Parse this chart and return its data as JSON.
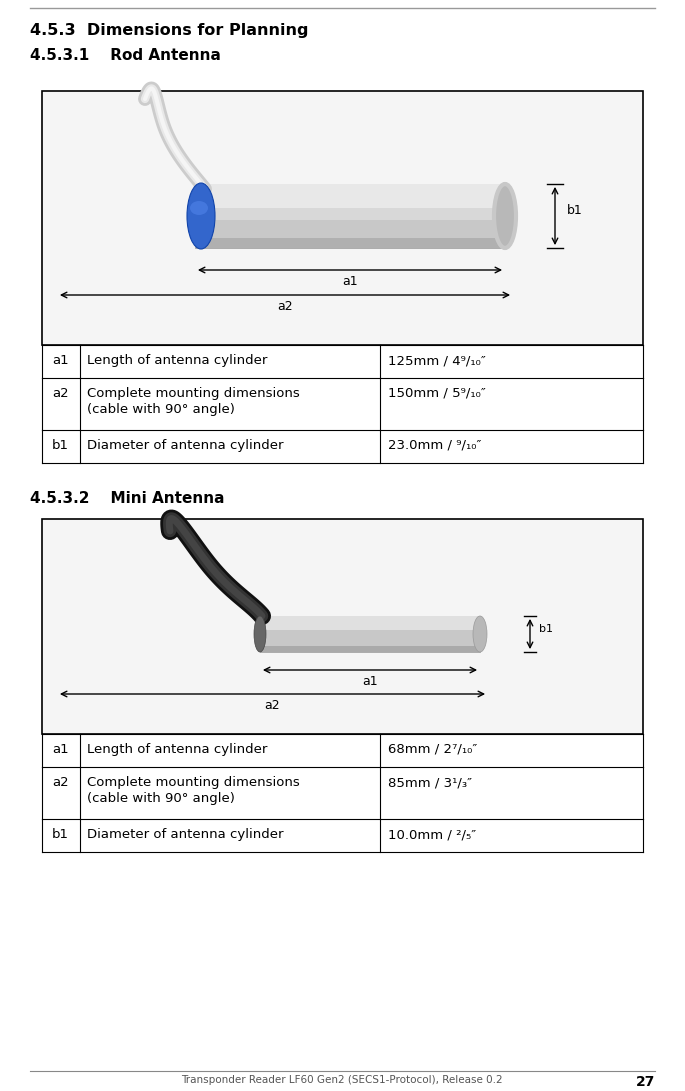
{
  "title1": "4.5.3  Dimensions for Planning",
  "subtitle1": "4.5.3.1    Rod Antenna",
  "subtitle2": "4.5.3.2    Mini Antenna",
  "rod_table": [
    [
      "a1",
      "Length of antenna cylinder",
      "125mm / 4⁹/₁₀″"
    ],
    [
      "a2",
      "Complete mounting dimensions\n(cable with 90° angle)",
      "150mm / 5⁹/₁₀″"
    ],
    [
      "b1",
      "Diameter of antenna cylinder",
      "23.0mm / ⁹/₁₀″"
    ]
  ],
  "mini_table": [
    [
      "a1",
      "Length of antenna cylinder",
      "68mm / 2⁷/₁₀″"
    ],
    [
      "a2",
      "Complete mounting dimensions\n(cable with 90° angle)",
      "85mm / 3¹/₃″"
    ],
    [
      "b1",
      "Diameter of antenna cylinder",
      "10.0mm / ²/₅″"
    ]
  ],
  "footer": "Transponder Reader LF60 Gen2 (SECS1-Protocol), Release 0.2",
  "page_num": "27"
}
